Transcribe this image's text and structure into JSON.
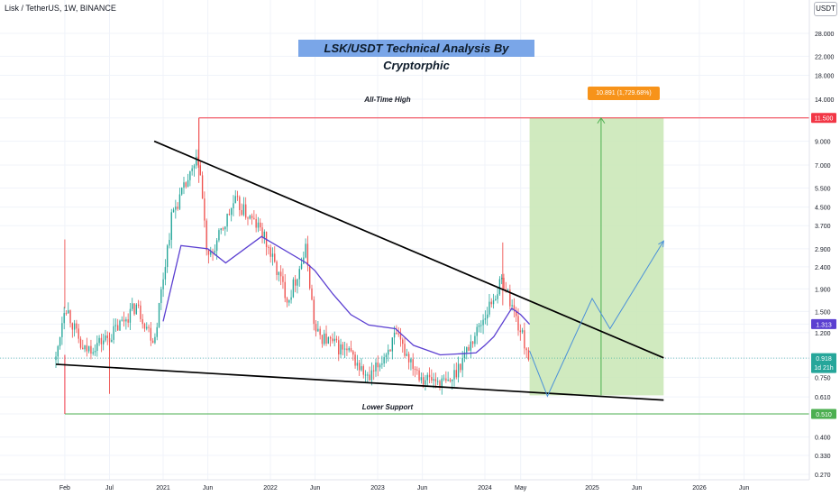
{
  "header": {
    "symbol": "Lisk / TetherUS, 1W, BINANCE",
    "currency_button": "USDT"
  },
  "annotations": {
    "title": "LSK/USDT Technical Analysis By Cryptorphic",
    "all_time_high": "All-Time High",
    "lower_support": "Lower Support",
    "measure": "10.891 (1,729.68%) 10,891"
  },
  "colors": {
    "up_candle": "#26a69a",
    "down_candle": "#ef5350",
    "moving_average": "#5b3fd1",
    "ath_line": "#f23645",
    "support_line": "#4caf50",
    "target_zone": "#c8e6b4",
    "projection": "#4a90d9",
    "trendline": "#000000",
    "title_box": "#7aa6e8",
    "measure_box": "#f7931a"
  },
  "chart_data": {
    "type": "candlestick",
    "pair": "LSK/USDT",
    "interval": "1W",
    "y_scale": "log",
    "ylim": [
      0.27,
      28.0
    ],
    "y_ticks": [
      "28.000",
      "22.000",
      "18.000",
      "14.000",
      "11.500",
      "9.000",
      "7.000",
      "5.500",
      "4.500",
      "3.700",
      "2.900",
      "2.400",
      "1.900",
      "1.500",
      "1.313",
      "1.200",
      "0.918",
      "0.750",
      "0.610",
      "0.510",
      "0.400",
      "0.330",
      "0.270"
    ],
    "x_ticks": [
      "Feb",
      "Jul",
      "2021",
      "Jun",
      "2022",
      "Jun",
      "2023",
      "Jun",
      "2024",
      "May",
      "2025",
      "Jun",
      "2026",
      "Jun"
    ],
    "price_markers": [
      {
        "label": "11.500",
        "value": 11.5,
        "color": "#f23645"
      },
      {
        "label": "1.313",
        "value": 1.313,
        "color": "#5b3fd1"
      },
      {
        "label": "0.918",
        "sublabel": "1d 21h",
        "value": 0.918,
        "color": "#26a69a"
      },
      {
        "label": "0.510",
        "value": 0.51,
        "color": "#4caf50"
      }
    ],
    "levels": {
      "all_time_high": 11.5,
      "lower_support": 0.51,
      "current_price": 0.918,
      "ma_value": 1.313
    },
    "measure": {
      "change": 10.891,
      "percent": "1,729.68%"
    },
    "trend_upper": {
      "from": {
        "t": "2020-12",
        "v": 9.0
      },
      "to": {
        "t": "2025-09",
        "v": 0.92
      }
    },
    "trend_lower": {
      "from": {
        "t": "2020-01",
        "v": 0.86
      },
      "to": {
        "t": "2025-09",
        "v": 0.59
      }
    },
    "projection_path": [
      {
        "t": "2024-06",
        "v": 0.99
      },
      {
        "t": "2024-08",
        "v": 0.615
      },
      {
        "t": "2025-01",
        "v": 1.72
      },
      {
        "t": "2025-03",
        "v": 1.25
      },
      {
        "t": "2025-09",
        "v": 3.15
      }
    ],
    "target_zone": {
      "t_start": "2024-06",
      "t_end": "2025-09",
      "v_low": 0.62,
      "v_high": 11.5
    },
    "price_path": [
      {
        "t": "2020-01",
        "v": 0.9
      },
      {
        "t": "2020-02",
        "v": 1.65
      },
      {
        "t": "2020-04",
        "v": 0.98
      },
      {
        "t": "2020-07",
        "v": 1.15
      },
      {
        "t": "2020-10",
        "v": 1.6
      },
      {
        "t": "2020-12",
        "v": 1.1
      },
      {
        "t": "2021-02",
        "v": 4.2
      },
      {
        "t": "2021-05",
        "v": 7.5
      },
      {
        "t": "2021-06",
        "v": 2.5
      },
      {
        "t": "2021-09",
        "v": 4.8
      },
      {
        "t": "2021-12",
        "v": 3.5
      },
      {
        "t": "2022-03",
        "v": 1.7
      },
      {
        "t": "2022-05",
        "v": 2.9
      },
      {
        "t": "2022-06",
        "v": 1.2
      },
      {
        "t": "2022-10",
        "v": 0.95
      },
      {
        "t": "2022-12",
        "v": 0.72
      },
      {
        "t": "2023-03",
        "v": 1.15
      },
      {
        "t": "2023-06",
        "v": 0.75
      },
      {
        "t": "2023-09",
        "v": 0.7
      },
      {
        "t": "2023-12",
        "v": 1.2
      },
      {
        "t": "2024-03",
        "v": 2.1
      },
      {
        "t": "2024-04",
        "v": 1.6
      },
      {
        "t": "2024-06",
        "v": 0.92
      }
    ],
    "moving_average": [
      {
        "t": "2021-01",
        "v": 1.35
      },
      {
        "t": "2021-03",
        "v": 3.0
      },
      {
        "t": "2021-06",
        "v": 2.9
      },
      {
        "t": "2021-08",
        "v": 2.5
      },
      {
        "t": "2021-12",
        "v": 3.3
      },
      {
        "t": "2022-05",
        "v": 2.5
      },
      {
        "t": "2022-06",
        "v": 2.3
      },
      {
        "t": "2022-08",
        "v": 1.8
      },
      {
        "t": "2022-10",
        "v": 1.45
      },
      {
        "t": "2022-12",
        "v": 1.3
      },
      {
        "t": "2023-03",
        "v": 1.25
      },
      {
        "t": "2023-05",
        "v": 1.05
      },
      {
        "t": "2023-08",
        "v": 0.95
      },
      {
        "t": "2023-12",
        "v": 0.97
      },
      {
        "t": "2024-01",
        "v": 1.05
      },
      {
        "t": "2024-02",
        "v": 1.15
      },
      {
        "t": "2024-04",
        "v": 1.55
      },
      {
        "t": "2024-05",
        "v": 1.45
      },
      {
        "t": "2024-06",
        "v": 1.31
      }
    ]
  }
}
